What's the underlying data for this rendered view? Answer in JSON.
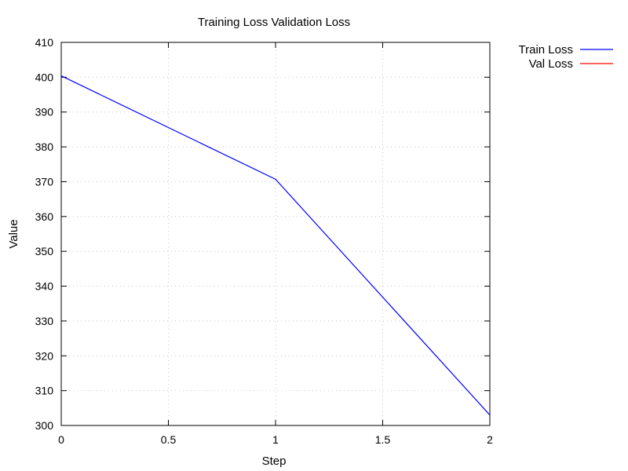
{
  "chart_data": {
    "type": "line",
    "title": "Training Loss  Validation Loss",
    "xlabel": "Step",
    "ylabel": "Value",
    "xlim": [
      0,
      2
    ],
    "ylim": [
      300,
      410
    ],
    "xticks": [
      0,
      0.5,
      1,
      1.5,
      2
    ],
    "yticks": [
      300,
      310,
      320,
      330,
      340,
      350,
      360,
      370,
      380,
      390,
      400,
      410
    ],
    "grid": true,
    "legend_position": "top-right outside",
    "series": [
      {
        "name": "Train Loss",
        "color": "#0000ff",
        "x": [
          0,
          1,
          2
        ],
        "y": [
          400.4,
          370.7,
          303.0
        ]
      },
      {
        "name": "Val Loss",
        "color": "#ff0000",
        "x": [],
        "y": []
      }
    ]
  }
}
